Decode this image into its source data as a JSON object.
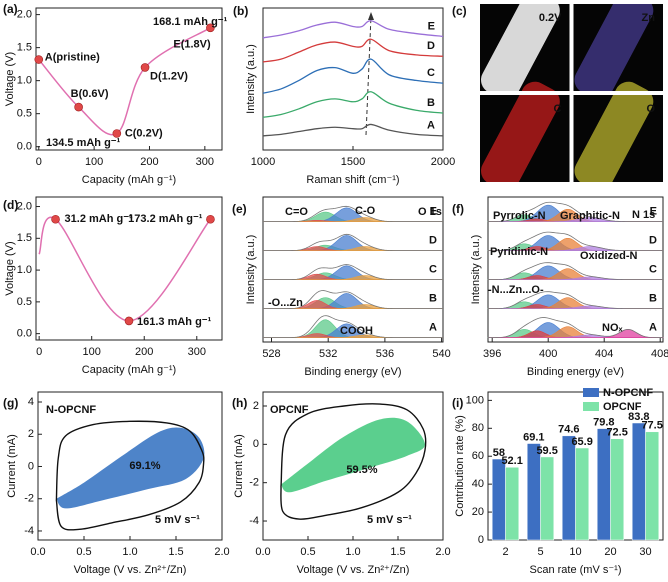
{
  "chart_data": [
    {
      "type": "line",
      "panel_label": "(a)",
      "x_label": "Capacity (mAh g⁻¹)",
      "y_label": "Voltage (V)",
      "xlim": [
        -5,
        331
      ],
      "ylim": [
        -0.05,
        2.1
      ],
      "xticks": [
        0,
        100,
        200,
        300
      ],
      "yticks": [
        {
          "value": 0,
          "label": "0.0"
        },
        {
          "value": 0.5,
          "label": "0.5"
        },
        {
          "value": 1,
          "label": "1.0"
        },
        {
          "value": 1.5,
          "label": "1.5"
        },
        {
          "value": 2,
          "label": "2.0"
        }
      ],
      "x": [
        0,
        72,
        141,
        192,
        310
      ],
      "values": [
        1.32,
        0.6,
        0.2,
        1.2,
        1.8
      ],
      "color": "#e070b0",
      "marker_color": "#e04848",
      "point_labels": [
        "A(pristine)",
        "B(0.6V)",
        "C(0.2V)",
        "D(1.2V)",
        "E(1.8V)"
      ],
      "annotations": [
        "168.1 mAh g⁻¹",
        "134.5 mAh g⁻¹"
      ]
    },
    {
      "type": "spectra",
      "panel_label": "(b)",
      "x_label": "Raman shift (cm⁻¹)",
      "y_label": "Intensity (a.u.)",
      "xlim": [
        1000,
        2000
      ],
      "ylim": [
        0,
        10
      ],
      "xticks": [
        1000,
        1500,
        2000
      ],
      "x": [
        1000,
        1100,
        1200,
        1300,
        1400,
        1500,
        1550,
        1600,
        1700,
        1850,
        2000
      ],
      "series": [
        {
          "name": "A",
          "color": "#555555",
          "values": [
            1.0,
            1.1,
            1.3,
            1.5,
            1.6,
            1.5,
            1.5,
            1.8,
            1.4,
            1.1,
            1.0
          ]
        },
        {
          "name": "B",
          "color": "#3aaa6a",
          "values": [
            2.3,
            2.5,
            2.9,
            3.4,
            3.6,
            3.4,
            3.6,
            4.1,
            3.3,
            2.8,
            2.6
          ]
        },
        {
          "name": "C",
          "color": "#2d6fb6",
          "values": [
            4.0,
            4.3,
            4.9,
            5.6,
            5.8,
            5.4,
            5.7,
            6.4,
            5.3,
            4.9,
            4.7
          ]
        },
        {
          "name": "D",
          "color": "#d43b3b",
          "values": [
            6.2,
            6.4,
            6.9,
            7.4,
            7.6,
            7.3,
            7.3,
            7.8,
            7.0,
            6.7,
            6.6
          ]
        },
        {
          "name": "E",
          "color": "#9a6fd8",
          "values": [
            7.9,
            8.1,
            8.4,
            8.8,
            9.0,
            8.7,
            8.7,
            9.1,
            8.5,
            8.2,
            8.0
          ]
        }
      ]
    },
    {
      "type": "image",
      "panel_label": "(c)",
      "labels": [
        "0.2V",
        "Zn",
        "C",
        "O"
      ],
      "colors": [
        "#e4e4e4",
        "#4a3f9a",
        "#d42020",
        "#c8c030"
      ]
    },
    {
      "type": "line",
      "panel_label": "(d)",
      "x_label": "Capacity (mAh g⁻¹)",
      "y_label": "Voltage (V)",
      "xlim": [
        -6,
        348
      ],
      "ylim": [
        -0.1,
        2.15
      ],
      "xticks": [
        0,
        100,
        200,
        300
      ],
      "yticks": [
        {
          "value": 0,
          "label": "0.0"
        },
        {
          "value": 0.5,
          "label": "0.5"
        },
        {
          "value": 1,
          "label": "1.0"
        },
        {
          "value": 1.5,
          "label": "1.5"
        },
        {
          "value": 2,
          "label": "2.0"
        }
      ],
      "x": [
        0,
        31.2,
        171,
        326
      ],
      "values": [
        1.25,
        1.8,
        0.2,
        1.8
      ],
      "markers": [
        false,
        true,
        true,
        true
      ],
      "color": "#e070b0",
      "marker_color": "#e04848",
      "point_labels": [
        null,
        "31.2 mAh g⁻¹",
        "161.3 mAh g⁻¹",
        "173.2 mAh g⁻¹"
      ]
    },
    {
      "type": "xps",
      "panel_label": "(e)",
      "title": "O 1s",
      "x_label": "Binding energy (eV)",
      "y_label": "Intensity (a.u.)",
      "xlim": [
        527.4,
        540.1
      ],
      "ylim": [
        0,
        10.5
      ],
      "xticks": [
        528,
        532,
        536,
        540
      ],
      "components": [
        {
          "label": "C=O",
          "center": 531.8,
          "fwhm": 1.6,
          "color": "#5cc98a"
        },
        {
          "label": "C-O",
          "center": 533.3,
          "fwhm": 1.7,
          "color": "#4a7fd0"
        },
        {
          "label": "-O...Zn",
          "center": 531.2,
          "fwhm": 1.4,
          "color": "#e05050"
        },
        {
          "label": "COOH",
          "center": 534.6,
          "fwhm": 1.6,
          "color": "#e8a040"
        }
      ],
      "spectra": [
        {
          "name": "A",
          "peaks": [
            1.3,
            1.0,
            0.3,
            0.2
          ]
        },
        {
          "name": "B",
          "peaks": [
            0.8,
            1.1,
            0.6,
            0.3
          ]
        },
        {
          "name": "C",
          "peaks": [
            0.5,
            1.0,
            0.4,
            0.3
          ]
        },
        {
          "name": "D",
          "peaks": [
            0.4,
            1.1,
            0.3,
            0.3
          ]
        },
        {
          "name": "E",
          "peaks": [
            0.7,
            1.0,
            0.1,
            0.3
          ]
        }
      ]
    },
    {
      "type": "xps",
      "panel_label": "(f)",
      "title": "N 1s",
      "x_label": "Binding energy (eV)",
      "y_label": "Intensity (a.u.)",
      "xlim": [
        395.7,
        408.2
      ],
      "ylim": [
        0,
        10.5
      ],
      "xticks": [
        396,
        400,
        404,
        408
      ],
      "components": [
        {
          "label": "Pyridinic-N",
          "center": 398.3,
          "fwhm": 1.5,
          "color": "#5cc98a"
        },
        {
          "label": "Pyrrolic-N",
          "center": 400.0,
          "fwhm": 1.8,
          "color": "#4a7fd0"
        },
        {
          "label": "-N...Zn...O-",
          "center": 399.2,
          "fwhm": 1.4,
          "color": "#e04040"
        },
        {
          "label": "Graphitic-N",
          "center": 401.4,
          "fwhm": 1.6,
          "color": "#e8823a"
        },
        {
          "label": "Oxidized-N",
          "center": 403.0,
          "fwhm": 2.0,
          "color": "#b07fe0"
        },
        {
          "label": "NOₓ",
          "center": 405.7,
          "fwhm": 1.4,
          "color": "#e040a0"
        }
      ],
      "spectra": [
        {
          "name": "A",
          "peaks": [
            0.6,
            1.1,
            0.5,
            0.8,
            0.2,
            0.6
          ]
        },
        {
          "name": "B",
          "peaks": [
            0.5,
            1.0,
            0.3,
            0.8,
            0.2,
            0
          ]
        },
        {
          "name": "C",
          "peaks": [
            0.5,
            1.0,
            0.3,
            0.8,
            0.2,
            0
          ]
        },
        {
          "name": "D",
          "peaks": [
            0.5,
            1.1,
            0.3,
            0.9,
            0.3,
            0
          ]
        },
        {
          "name": "E",
          "peaks": [
            0.5,
            1.2,
            0.2,
            0.9,
            0.3,
            0
          ]
        }
      ]
    },
    {
      "type": "cv",
      "panel_label": "(g)",
      "title": "N-OPCNF",
      "loop_label": "69.1%",
      "scan_rate": "5 mV s⁻¹",
      "x_label": "Voltage (V vs. Zn²⁺/Zn)",
      "y_label": "Current (mA)",
      "xlim": [
        0,
        2
      ],
      "ylim": [
        -4.56,
        4.62
      ],
      "xticks": [
        {
          "value": 0,
          "label": "0.0"
        },
        {
          "value": 0.5,
          "label": "0.5"
        },
        {
          "value": 1,
          "label": "1.0"
        },
        {
          "value": 1.5,
          "label": "1.5"
        },
        {
          "value": 2,
          "label": "2.0"
        }
      ],
      "yticks": [
        -4,
        -2,
        0,
        2,
        4
      ],
      "color": "#2f6fc0",
      "outer": {
        "x": [
          0.2,
          0.22,
          0.3,
          0.6,
          1.0,
          1.4,
          1.65,
          1.78,
          1.8,
          1.75,
          1.55,
          1.2,
          0.8,
          0.45,
          0.25,
          0.2
        ],
        "y": [
          -2.1,
          0.5,
          1.9,
          2.6,
          2.8,
          2.7,
          2.2,
          1.0,
          0.2,
          -1.0,
          -2.2,
          -3.0,
          -3.5,
          -3.9,
          -3.7,
          -2.1
        ]
      },
      "inner": {
        "x": [
          0.2,
          0.5,
          0.9,
          1.3,
          1.55,
          1.75,
          1.8,
          1.6,
          1.2,
          0.7,
          0.3,
          0.2
        ],
        "y": [
          -2.0,
          -1.0,
          0.6,
          2.1,
          2.4,
          1.8,
          0.5,
          -0.8,
          -1.4,
          -2.1,
          -2.6,
          -2.0
        ]
      }
    },
    {
      "type": "cv",
      "panel_label": "(h)",
      "title": "OPCNF",
      "loop_label": "59.5%",
      "scan_rate": "5 mV s⁻¹",
      "x_label": "Voltage (V vs. Zn²⁺/Zn)",
      "y_label": "Current (mA)",
      "xlim": [
        0,
        2
      ],
      "ylim": [
        -4.99,
        2.73
      ],
      "xticks": [
        {
          "value": 0,
          "label": "0.0"
        },
        {
          "value": 0.5,
          "label": "0.5"
        },
        {
          "value": 1,
          "label": "1.0"
        },
        {
          "value": 1.5,
          "label": "1.5"
        },
        {
          "value": 2,
          "label": "2.0"
        }
      ],
      "yticks": [
        -4,
        -2,
        0,
        2
      ],
      "color": "#3ec77a",
      "outer": {
        "x": [
          0.2,
          0.25,
          0.5,
          0.9,
          1.3,
          1.6,
          1.78,
          1.8,
          1.7,
          1.5,
          1.1,
          0.7,
          0.4,
          0.22,
          0.2
        ],
        "y": [
          -2.2,
          0.5,
          1.6,
          2.0,
          2.1,
          1.8,
          0.8,
          -0.3,
          -1.5,
          -2.5,
          -3.3,
          -3.7,
          -3.9,
          -3.5,
          -2.2
        ]
      },
      "inner": {
        "x": [
          0.2,
          0.5,
          0.9,
          1.3,
          1.6,
          1.8,
          1.6,
          1.2,
          0.7,
          0.3,
          0.2
        ],
        "y": [
          -2.1,
          -1.0,
          0.4,
          1.3,
          1.2,
          0.0,
          -0.6,
          -1.2,
          -1.9,
          -2.5,
          -2.1
        ]
      }
    },
    {
      "type": "bar",
      "panel_label": "(i)",
      "x_label": "Scan rate (mV s⁻¹)",
      "y_label": "Contribution rate (%)",
      "categories": [
        "2",
        "5",
        "10",
        "20",
        "30"
      ],
      "ylim": [
        0,
        106
      ],
      "yticks": [
        0,
        20,
        40,
        60,
        80,
        100
      ],
      "legend": "top-right",
      "series": [
        {
          "name": "N-OPCNF",
          "color": "#3d6fc2",
          "values": [
            58,
            69.1,
            74.6,
            79.8,
            83.8
          ]
        },
        {
          "name": "OPCNF",
          "color": "#7de3a8",
          "values": [
            52.1,
            59.5,
            65.9,
            72.5,
            77.5
          ]
        }
      ]
    }
  ]
}
